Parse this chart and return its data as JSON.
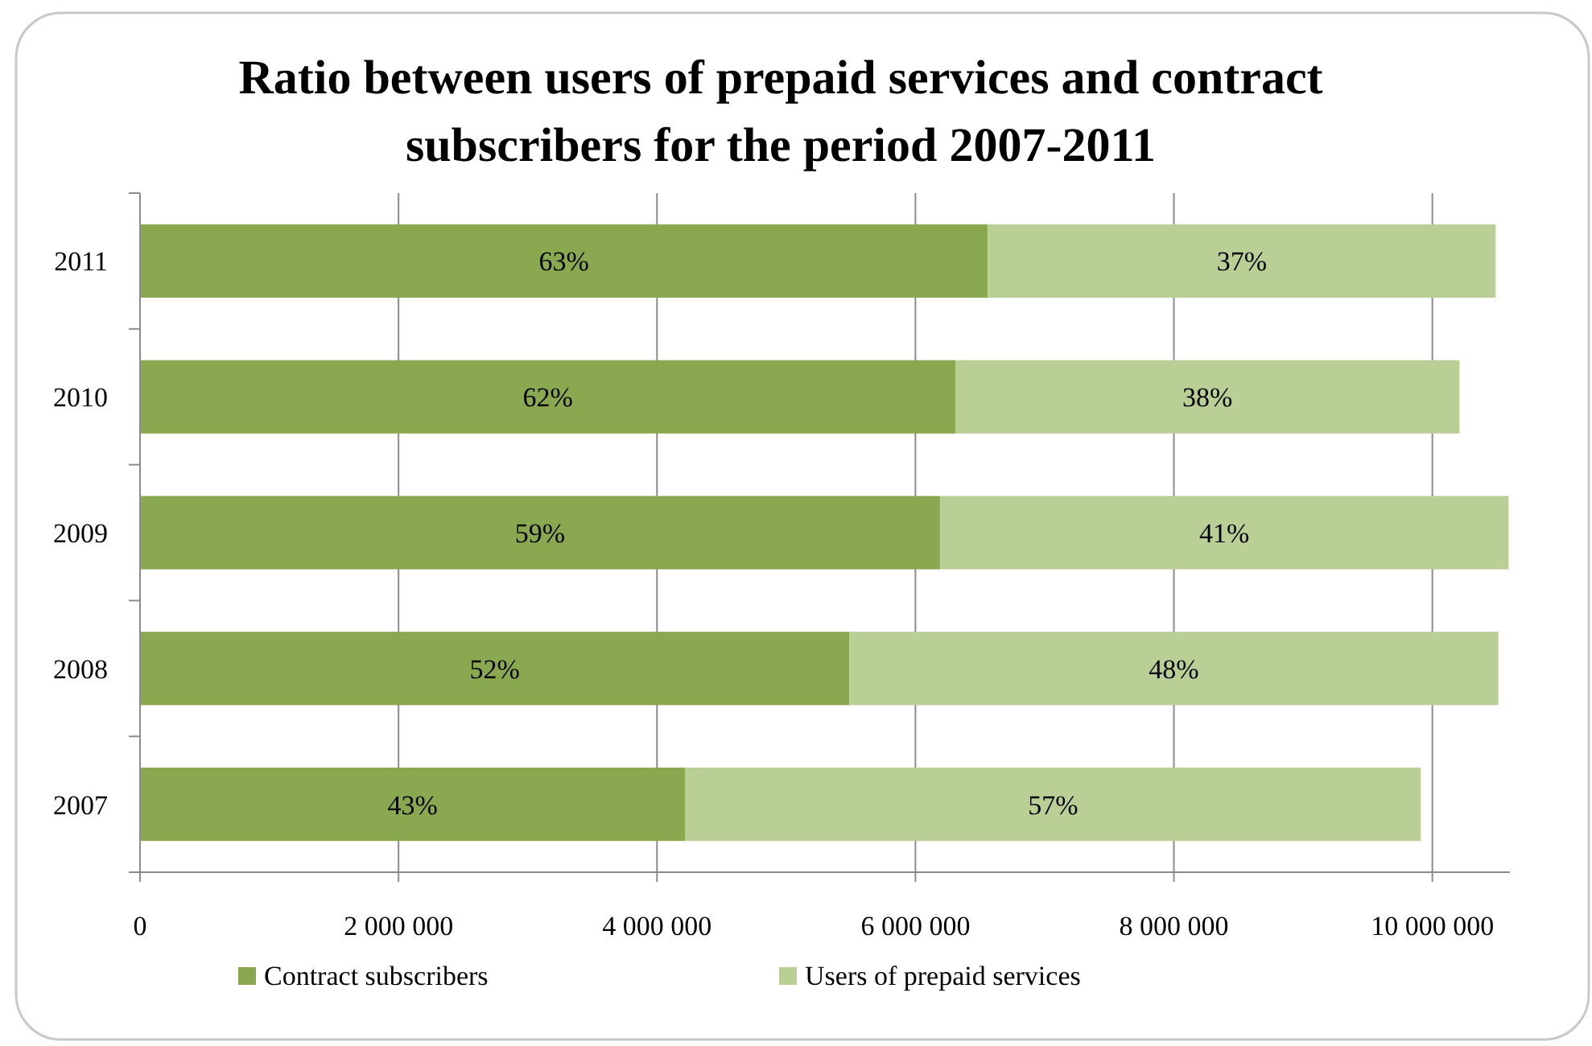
{
  "chart_data": {
    "type": "bar",
    "orientation": "horizontal",
    "stacked": true,
    "title": "Ratio between users of prepaid services and contract subscribers for the period 2007-2011",
    "categories": [
      "2011",
      "2010",
      "2009",
      "2008",
      "2007"
    ],
    "series": [
      {
        "name": "Contract subscribers",
        "color": "#8aa84f",
        "values": [
          6560000,
          6310000,
          6190000,
          5490000,
          4220000
        ]
      },
      {
        "name": "Users of prepaid services",
        "color": "#b9cf96",
        "values": [
          3930000,
          3900000,
          4400000,
          5020000,
          5690000
        ]
      }
    ],
    "annotations": [
      "63%",
      "62%",
      "59%",
      "52%",
      "43%",
      "37%",
      "38%",
      "41%",
      "48%",
      "57%"
    ],
    "xlim": [
      0,
      10600000
    ],
    "xticks": [
      0,
      {
        "value": 2000000,
        "label": "2 000 000"
      },
      {
        "value": 4000000,
        "label": "4 000 000"
      },
      {
        "value": 6000000,
        "label": "6 000 000"
      },
      {
        "value": 8000000,
        "label": "8 000 000"
      },
      {
        "value": 10000000,
        "label": "10 000 000"
      }
    ],
    "grid": "x",
    "legend": "bottom"
  }
}
